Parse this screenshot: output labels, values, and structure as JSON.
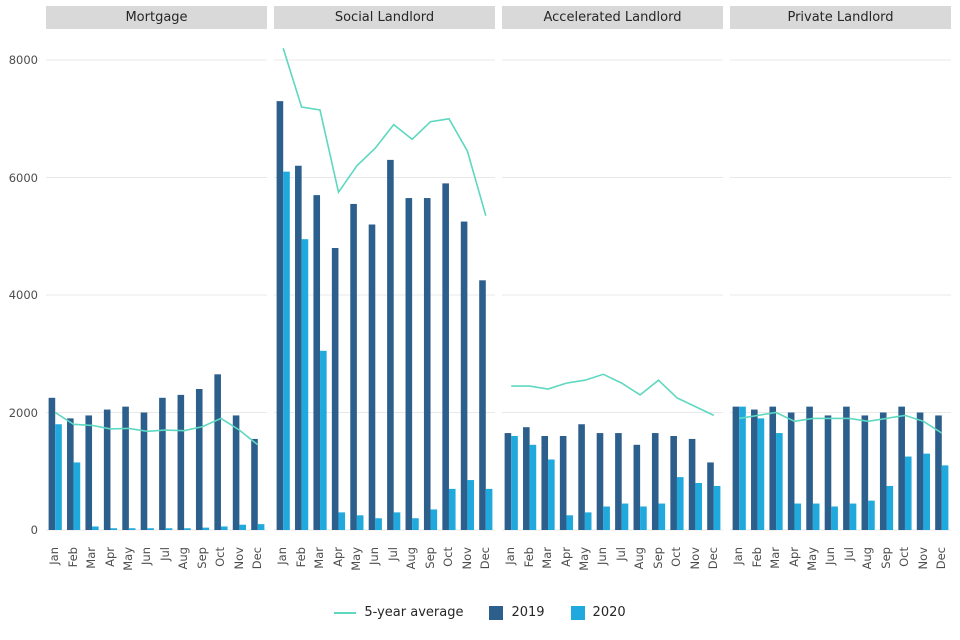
{
  "chart_data": {
    "type": "bar",
    "title": "",
    "xlabel": "",
    "ylabel": "",
    "ylim": [
      0,
      8400
    ],
    "yticks": [
      0,
      2000,
      4000,
      6000,
      8000
    ],
    "grid": true,
    "legend_position": "bottom",
    "categories": [
      "Jan",
      "Feb",
      "Mar",
      "Apr",
      "May",
      "Jun",
      "Jul",
      "Aug",
      "Sep",
      "Oct",
      "Nov",
      "Dec"
    ],
    "facets": [
      {
        "label": "Mortgage",
        "series": [
          {
            "name": "5-year average",
            "type": "line",
            "values": [
              2000,
              1800,
              1780,
              1720,
              1730,
              1680,
              1700,
              1690,
              1760,
              1900,
              1700,
              1450
            ]
          },
          {
            "name": "2019",
            "type": "bar",
            "values": [
              2250,
              1900,
              1950,
              2050,
              2100,
              2000,
              2250,
              2300,
              2400,
              2650,
              1950,
              1550
            ]
          },
          {
            "name": "2020",
            "type": "bar",
            "values": [
              1800,
              1150,
              60,
              30,
              30,
              30,
              30,
              30,
              40,
              60,
              90,
              100
            ]
          }
        ]
      },
      {
        "label": "Social Landlord",
        "series": [
          {
            "name": "5-year average",
            "type": "line",
            "values": [
              8200,
              7200,
              7150,
              5750,
              6200,
              6500,
              6900,
              6650,
              6950,
              7000,
              6450,
              5350
            ]
          },
          {
            "name": "2019",
            "type": "bar",
            "values": [
              7300,
              6200,
              5700,
              4800,
              5550,
              5200,
              6300,
              5650,
              5650,
              5900,
              5250,
              4250
            ]
          },
          {
            "name": "2020",
            "type": "bar",
            "values": [
              6100,
              4950,
              3050,
              300,
              250,
              200,
              300,
              200,
              350,
              700,
              850,
              700
            ]
          }
        ]
      },
      {
        "label": "Accelerated Landlord",
        "series": [
          {
            "name": "5-year average",
            "type": "line",
            "values": [
              2450,
              2450,
              2400,
              2500,
              2550,
              2650,
              2500,
              2300,
              2550,
              2250,
              2100,
              1950
            ]
          },
          {
            "name": "2019",
            "type": "bar",
            "values": [
              1650,
              1750,
              1600,
              1600,
              1800,
              1650,
              1650,
              1450,
              1650,
              1600,
              1550,
              1150
            ]
          },
          {
            "name": "2020",
            "type": "bar",
            "values": [
              1600,
              1450,
              1200,
              250,
              300,
              400,
              450,
              400,
              450,
              900,
              800,
              750
            ]
          }
        ]
      },
      {
        "label": "Private Landlord",
        "series": [
          {
            "name": "5-year average",
            "type": "line",
            "values": [
              1900,
              1950,
              2000,
              1850,
              1900,
              1900,
              1900,
              1850,
              1900,
              1950,
              1850,
              1650
            ]
          },
          {
            "name": "2019",
            "type": "bar",
            "values": [
              2100,
              2050,
              2100,
              2000,
              2100,
              1950,
              2100,
              1950,
              2000,
              2100,
              2000,
              1950
            ]
          },
          {
            "name": "2020",
            "type": "bar",
            "values": [
              2100,
              1900,
              1650,
              450,
              450,
              400,
              450,
              500,
              750,
              1250,
              1300,
              1100
            ]
          }
        ]
      }
    ]
  },
  "legend": {
    "items": [
      {
        "label": "5-year average",
        "swatch": "line"
      },
      {
        "label": "2019",
        "swatch": "square"
      },
      {
        "label": "2020",
        "swatch": "square"
      }
    ]
  },
  "colors": {
    "bar_2019": "#2d5f8d",
    "bar_2020": "#1fa9dc",
    "avg_line": "#5ed8c0",
    "strip_bg": "#d9d9d9",
    "strip_text": "#262626",
    "gridline": "#e8e8e8",
    "axis_text": "#4d4d4d",
    "background": "#ffffff"
  }
}
